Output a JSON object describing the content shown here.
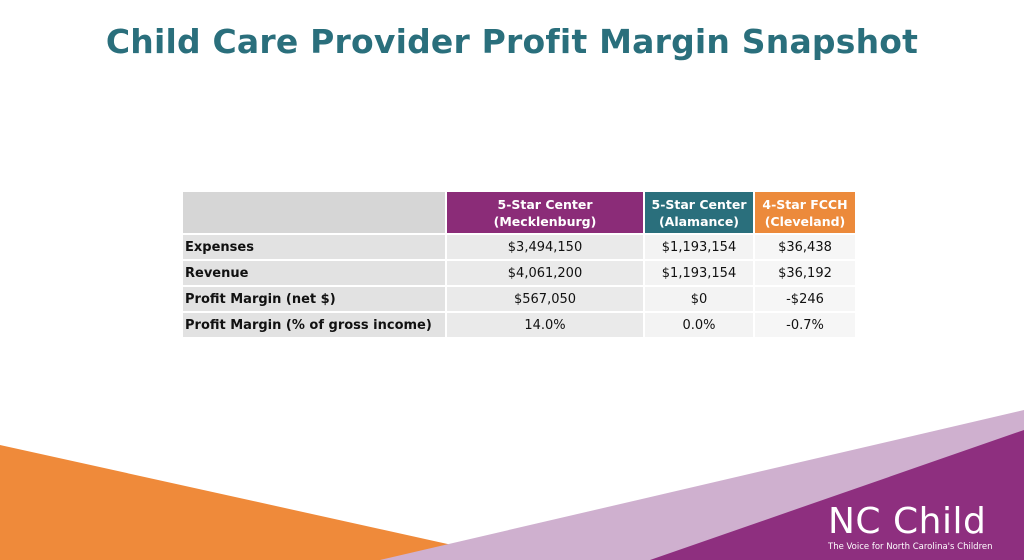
{
  "slide": {
    "title": "Child Care Provider Profit Margin Snapshot"
  },
  "table": {
    "columns": [
      {
        "line1": "5-Star Center",
        "line2": "(Mecklenburg)",
        "color": "#8b2c78"
      },
      {
        "line1": "5-Star Center",
        "line2": "(Alamance)",
        "color": "#2a6f7c"
      },
      {
        "line1": "4-Star FCCH",
        "line2": "(Cleveland)",
        "color": "#ec8a3b"
      }
    ],
    "rows": [
      {
        "label": "Expenses",
        "values": [
          "$3,494,150",
          "$1,193,154",
          "$36,438"
        ]
      },
      {
        "label": "Revenue",
        "values": [
          "$4,061,200",
          "$1,193,154",
          "$36,192"
        ]
      },
      {
        "label": "Profit Margin (net $)",
        "values": [
          "$567,050",
          "$0",
          "-$246"
        ]
      },
      {
        "label": "Profit Margin (% of gross income)",
        "values": [
          "14.0%",
          "0.0%",
          "-0.7%"
        ]
      }
    ]
  },
  "logo": {
    "name": "NC Child",
    "tagline": "The Voice for North Carolina's Children"
  },
  "colors": {
    "title": "#2a6f7c",
    "purple": "#8b2c78",
    "teal": "#2a6f7c",
    "orange": "#ec8a3b",
    "light_purple": "#c9a6c8"
  }
}
